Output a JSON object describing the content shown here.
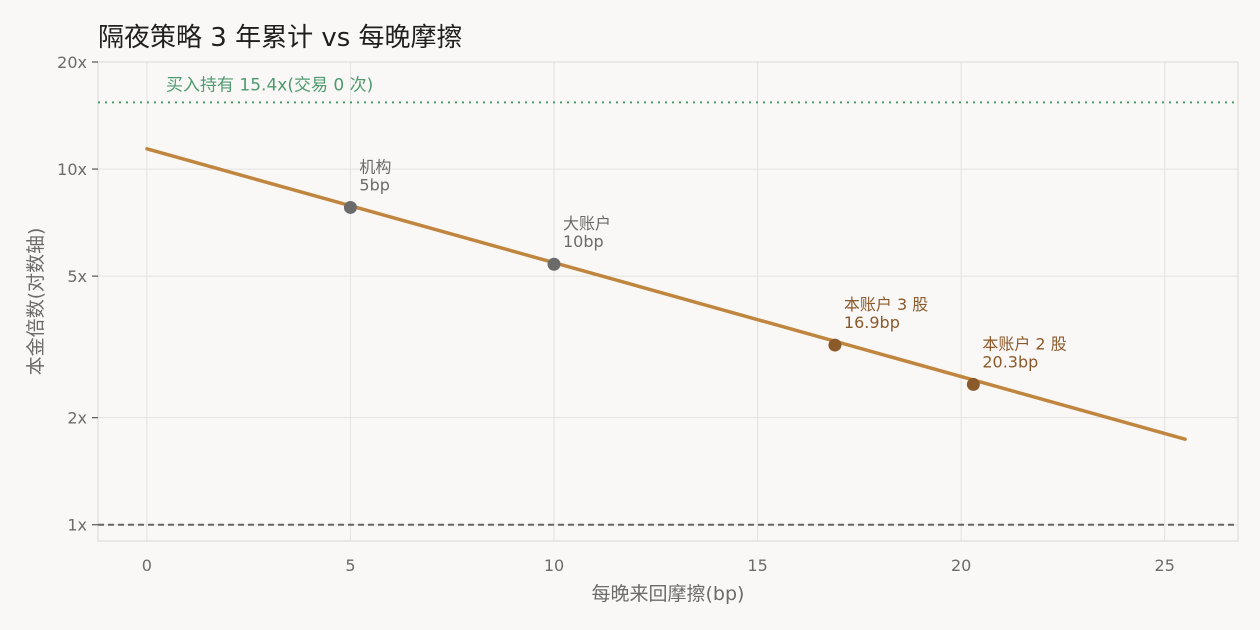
{
  "chart_data": {
    "type": "line",
    "title": "隔夜策略 3 年累计 vs 每晚摩擦",
    "xlabel": "每晚来回摩擦(bp)",
    "ylabel": "本金倍数(对数轴)",
    "xlim": [
      -1.2,
      26.8
    ],
    "ylim": [
      0.9,
      20
    ],
    "yscale": "log",
    "grid": true,
    "x_ticks": [
      0,
      5,
      10,
      15,
      20,
      25
    ],
    "x_tick_labels": [
      "0",
      "5",
      "10",
      "15",
      "20",
      "25"
    ],
    "y_ticks": [
      1,
      2,
      5,
      10,
      20
    ],
    "y_tick_labels": [
      "1x",
      "2x",
      "5x",
      "10x",
      "20x"
    ],
    "series": [
      {
        "x": [
          0,
          25.5
        ],
        "y": [
          11.4,
          1.74
        ],
        "color": "#c0863f"
      }
    ],
    "reference_lines": [
      {
        "y": 15.4,
        "label": "买入持有 15.4x(交易 0 次)",
        "color": "#4e9a6f",
        "style": "dotted"
      },
      {
        "y": 1,
        "label": "",
        "color": "#666666",
        "style": "dashed"
      }
    ],
    "annotations": [
      {
        "x": 5,
        "y": 7.8,
        "name": "机构",
        "value_label": "5bp",
        "color": "#6b6b6b"
      },
      {
        "x": 10,
        "y": 5.4,
        "name": "大账户",
        "value_label": "10bp",
        "color": "#6b6b6b"
      },
      {
        "x": 16.9,
        "y": 3.2,
        "name": "本账户 3 股",
        "value_label": "16.9bp",
        "color": "#8b5a2b"
      },
      {
        "x": 20.3,
        "y": 2.48,
        "name": "本账户 2 股",
        "value_label": "20.3bp",
        "color": "#8b5a2b"
      }
    ],
    "colors": {
      "grid": "#e2e2e2",
      "axis": "#dddddd",
      "tick_text": "#6b6b6b",
      "title": "#1f1f1f"
    }
  }
}
